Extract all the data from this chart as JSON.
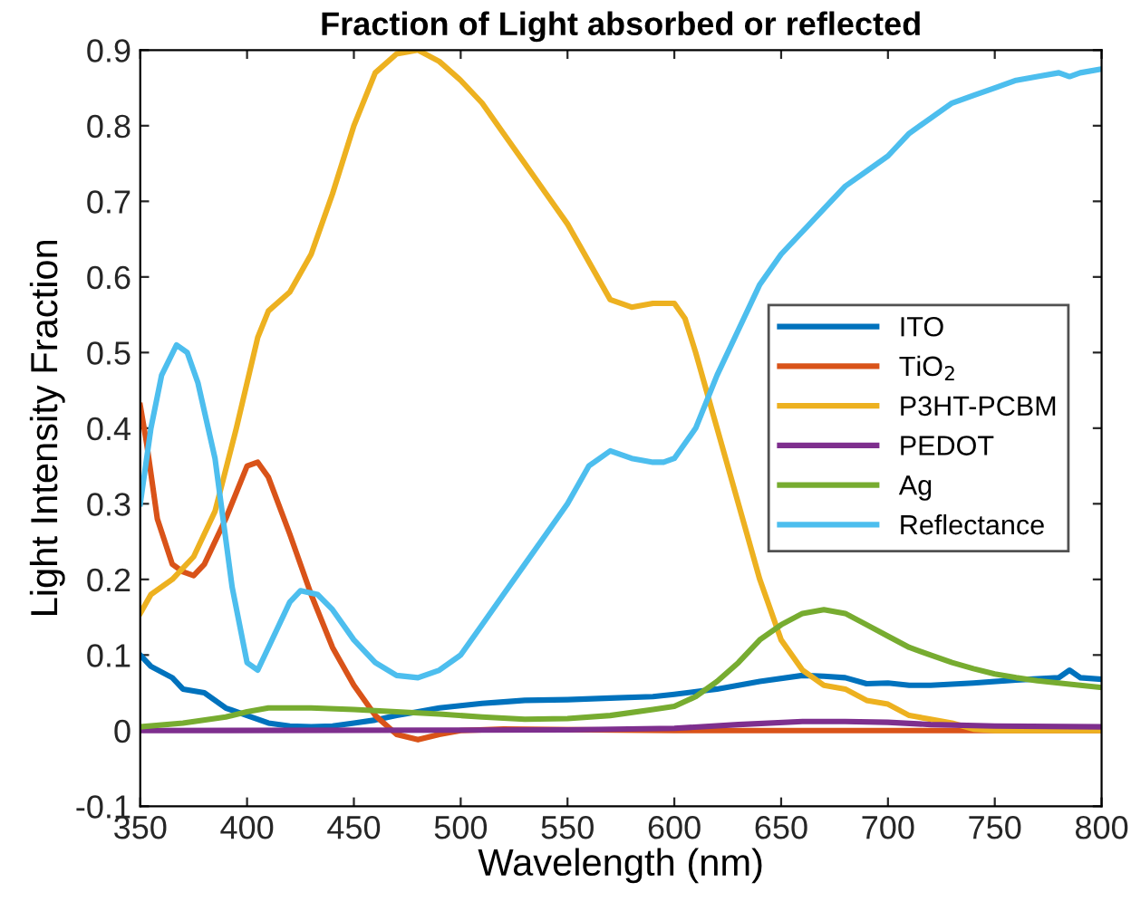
{
  "chart_data": {
    "type": "line",
    "title": "Fraction of Light absorbed or reflected",
    "xlabel": "Wavelength (nm)",
    "ylabel": "Light Intensity Fraction",
    "xlim": [
      350,
      800
    ],
    "xticks": [
      350,
      400,
      450,
      500,
      550,
      600,
      650,
      700,
      750,
      800
    ],
    "ylim": [
      -0.1,
      0.9
    ],
    "yticks": [
      -0.1,
      0,
      0.1,
      0.2,
      0.3,
      0.4,
      0.5,
      0.6,
      0.7,
      0.8,
      0.9
    ],
    "grid": false,
    "legend": "right",
    "marker": "none",
    "line_style": "solid",
    "series": [
      {
        "name": "ITO",
        "color": "#0072bd",
        "x": [
          350,
          355,
          365,
          370,
          380,
          390,
          400,
          410,
          420,
          430,
          440,
          450,
          460,
          470,
          480,
          490,
          500,
          510,
          520,
          530,
          550,
          570,
          590,
          600,
          620,
          640,
          660,
          670,
          680,
          690,
          700,
          710,
          720,
          740,
          760,
          780,
          785,
          790,
          800
        ],
        "values": [
          0.1,
          0.085,
          0.07,
          0.055,
          0.05,
          0.03,
          0.02,
          0.01,
          0.006,
          0.005,
          0.006,
          0.01,
          0.014,
          0.02,
          0.025,
          0.03,
          0.033,
          0.036,
          0.038,
          0.04,
          0.041,
          0.043,
          0.045,
          0.048,
          0.055,
          0.065,
          0.073,
          0.072,
          0.07,
          0.062,
          0.063,
          0.06,
          0.06,
          0.063,
          0.067,
          0.07,
          0.08,
          0.07,
          0.068
        ]
      },
      {
        "name": "TiO$_{2}$",
        "color": "#d95319",
        "x": [
          350,
          353,
          358,
          365,
          370,
          375,
          380,
          390,
          400,
          405,
          410,
          420,
          430,
          440,
          450,
          460,
          470,
          480,
          490,
          500,
          520,
          600,
          800
        ],
        "values": [
          0.43,
          0.38,
          0.28,
          0.22,
          0.21,
          0.205,
          0.22,
          0.28,
          0.35,
          0.355,
          0.335,
          0.26,
          0.18,
          0.11,
          0.06,
          0.02,
          -0.005,
          -0.012,
          -0.005,
          0,
          0.002,
          0,
          0
        ]
      },
      {
        "name": "P3HT-PCBM",
        "color": "#edb120",
        "x": [
          350,
          355,
          365,
          375,
          385,
          395,
          405,
          410,
          420,
          430,
          440,
          450,
          460,
          470,
          480,
          490,
          500,
          510,
          520,
          530,
          540,
          550,
          560,
          570,
          580,
          590,
          600,
          605,
          610,
          620,
          630,
          640,
          650,
          660,
          670,
          680,
          690,
          700,
          710,
          720,
          730,
          740,
          750,
          800
        ],
        "values": [
          0.155,
          0.18,
          0.2,
          0.23,
          0.29,
          0.4,
          0.52,
          0.555,
          0.58,
          0.63,
          0.71,
          0.8,
          0.87,
          0.895,
          0.9,
          0.885,
          0.86,
          0.83,
          0.79,
          0.75,
          0.71,
          0.67,
          0.62,
          0.57,
          0.56,
          0.565,
          0.565,
          0.545,
          0.5,
          0.4,
          0.3,
          0.2,
          0.12,
          0.08,
          0.06,
          0.055,
          0.04,
          0.035,
          0.02,
          0.015,
          0.01,
          0.002,
          0,
          0
        ]
      },
      {
        "name": "PEDOT",
        "color": "#7e2f8e",
        "x": [
          350,
          550,
          600,
          630,
          660,
          680,
          700,
          720,
          750,
          800
        ],
        "values": [
          0,
          0.001,
          0.003,
          0.008,
          0.012,
          0.012,
          0.011,
          0.008,
          0.006,
          0.005
        ]
      },
      {
        "name": "Ag",
        "color": "#77ac30",
        "x": [
          350,
          370,
          390,
          400,
          410,
          430,
          450,
          470,
          490,
          510,
          530,
          550,
          570,
          590,
          600,
          610,
          620,
          630,
          640,
          650,
          660,
          670,
          680,
          690,
          700,
          710,
          720,
          730,
          740,
          750,
          760,
          770,
          780,
          790,
          800
        ],
        "values": [
          0.005,
          0.01,
          0.018,
          0.025,
          0.03,
          0.03,
          0.028,
          0.025,
          0.022,
          0.018,
          0.015,
          0.016,
          0.02,
          0.028,
          0.032,
          0.045,
          0.065,
          0.09,
          0.12,
          0.14,
          0.155,
          0.16,
          0.155,
          0.14,
          0.125,
          0.11,
          0.1,
          0.09,
          0.082,
          0.075,
          0.07,
          0.066,
          0.063,
          0.06,
          0.057
        ]
      },
      {
        "name": "Reflectance",
        "color": "#4dbeee",
        "x": [
          350,
          355,
          360,
          367,
          372,
          377,
          385,
          393,
          400,
          405,
          410,
          420,
          425,
          433,
          440,
          450,
          460,
          470,
          480,
          490,
          500,
          510,
          520,
          530,
          540,
          550,
          560,
          570,
          580,
          590,
          595,
          600,
          610,
          620,
          630,
          640,
          650,
          660,
          670,
          680,
          690,
          700,
          710,
          720,
          730,
          740,
          750,
          760,
          770,
          780,
          785,
          790,
          800
        ],
        "values": [
          0.3,
          0.4,
          0.47,
          0.51,
          0.5,
          0.46,
          0.36,
          0.19,
          0.09,
          0.08,
          0.11,
          0.17,
          0.185,
          0.18,
          0.16,
          0.12,
          0.09,
          0.073,
          0.07,
          0.08,
          0.1,
          0.14,
          0.18,
          0.22,
          0.26,
          0.3,
          0.35,
          0.37,
          0.36,
          0.355,
          0.355,
          0.36,
          0.4,
          0.47,
          0.53,
          0.59,
          0.63,
          0.66,
          0.69,
          0.72,
          0.74,
          0.76,
          0.79,
          0.81,
          0.83,
          0.84,
          0.85,
          0.86,
          0.865,
          0.87,
          0.865,
          0.87,
          0.875
        ]
      }
    ]
  }
}
